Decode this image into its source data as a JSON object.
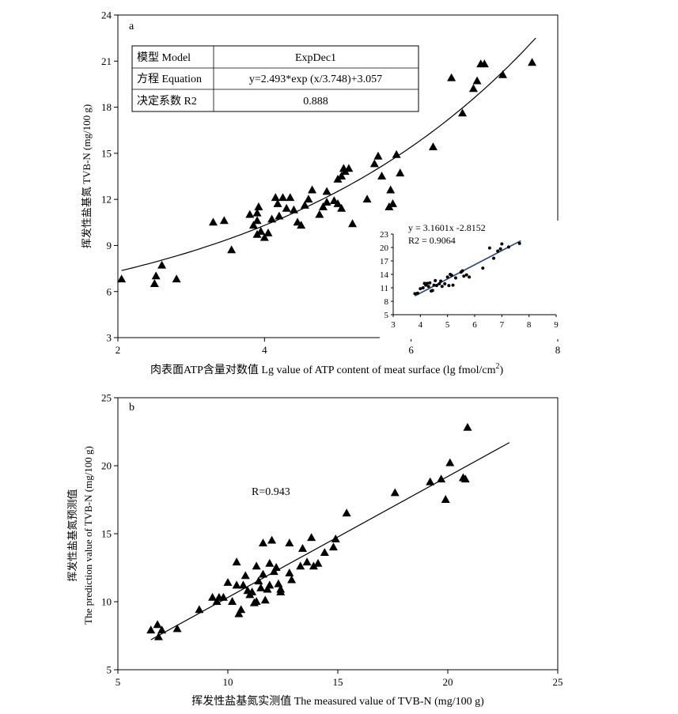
{
  "figure": {
    "panels": [
      {
        "label": "a",
        "xlabel": "肉表面ATP含量对数值 Lg value of ATP content of meat surface (lg fmol/cm",
        "xlabel_sup": "2",
        "xlabel_tail": ")",
        "ylabel": "挥发性盐基氮 TVB-N (mg/100 g)",
        "table": {
          "rows": [
            [
              "模型 Model",
              "ExpDec1"
            ],
            [
              "方程 Equation",
              "y=2.493*exp (x/3.748)+3.057"
            ],
            [
              "决定系数 R2",
              "0.888"
            ]
          ]
        },
        "inset": {
          "eq_line1": "y = 3.1601x -2.8152",
          "eq_line2": "R2 = 0.9064"
        }
      },
      {
        "label": "b",
        "xlabel": "挥发性盐基氮实测值 The measured value of TVB-N (mg/100 g)",
        "ylabel_cn": "挥发性盐基氮预测值",
        "ylabel_en": "The prediction value of TVB-N (mg/100 g)",
        "annotation": "R=0.943"
      }
    ]
  },
  "chart_data": [
    {
      "type": "scatter",
      "panel": "a",
      "x_range": [
        2,
        8
      ],
      "y_range": [
        3,
        24
      ],
      "x_ticks": [
        2,
        4,
        6,
        8
      ],
      "y_ticks": [
        3,
        6,
        9,
        12,
        15,
        18,
        21,
        24
      ],
      "marker": "triangle",
      "fit": {
        "model": "ExpDec1",
        "a": 2.493,
        "t": 3.748,
        "c": 3.057,
        "x_from": 2.05,
        "x_to": 7.7
      },
      "points": [
        [
          2.05,
          6.8
        ],
        [
          2.5,
          6.5
        ],
        [
          2.52,
          7.0
        ],
        [
          2.6,
          7.7
        ],
        [
          2.8,
          6.8
        ],
        [
          3.3,
          10.5
        ],
        [
          3.45,
          10.6
        ],
        [
          3.55,
          8.7
        ],
        [
          3.8,
          11.0
        ],
        [
          3.85,
          10.3
        ],
        [
          3.9,
          10.6
        ],
        [
          3.9,
          11.1
        ],
        [
          3.92,
          11.5
        ],
        [
          3.9,
          9.7
        ],
        [
          3.95,
          9.9
        ],
        [
          4.0,
          9.5
        ],
        [
          4.05,
          9.8
        ],
        [
          4.1,
          10.7
        ],
        [
          4.15,
          12.1
        ],
        [
          4.18,
          11.7
        ],
        [
          4.2,
          10.9
        ],
        [
          4.25,
          12.1
        ],
        [
          4.3,
          11.4
        ],
        [
          4.35,
          12.1
        ],
        [
          4.4,
          11.3
        ],
        [
          4.45,
          10.5
        ],
        [
          4.5,
          10.3
        ],
        [
          4.55,
          11.6
        ],
        [
          4.6,
          12.0
        ],
        [
          4.65,
          12.6
        ],
        [
          4.75,
          11.0
        ],
        [
          4.8,
          11.5
        ],
        [
          4.85,
          12.5
        ],
        [
          4.85,
          11.8
        ],
        [
          4.95,
          11.9
        ],
        [
          5.0,
          11.7
        ],
        [
          5.0,
          13.3
        ],
        [
          5.05,
          13.5
        ],
        [
          5.05,
          11.4
        ],
        [
          5.08,
          14.0
        ],
        [
          5.1,
          13.8
        ],
        [
          5.15,
          14.0
        ],
        [
          5.2,
          10.4
        ],
        [
          5.4,
          12.0
        ],
        [
          5.5,
          14.3
        ],
        [
          5.55,
          14.8
        ],
        [
          5.6,
          13.5
        ],
        [
          5.7,
          11.5
        ],
        [
          5.72,
          12.6
        ],
        [
          5.75,
          11.7
        ],
        [
          5.8,
          14.9
        ],
        [
          5.85,
          13.7
        ],
        [
          6.3,
          15.4
        ],
        [
          6.55,
          19.9
        ],
        [
          6.7,
          17.6
        ],
        [
          6.85,
          19.2
        ],
        [
          6.9,
          19.7
        ],
        [
          6.95,
          20.8
        ],
        [
          7.0,
          20.8
        ],
        [
          7.25,
          20.1
        ],
        [
          7.65,
          20.9
        ]
      ]
    },
    {
      "type": "scatter",
      "panel": "a-inset",
      "x_range": [
        3,
        9
      ],
      "y_range": [
        5,
        23
      ],
      "x_ticks": [
        3,
        4,
        5,
        6,
        7,
        8,
        9
      ],
      "y_ticks": [
        5,
        8,
        11,
        14,
        17,
        20,
        23
      ],
      "marker": "dot",
      "fit": {
        "slope": 3.1601,
        "intercept": -2.8152,
        "x_from": 3.8,
        "x_to": 7.7
      },
      "points": [
        [
          3.8,
          9.7
        ],
        [
          3.9,
          9.8
        ],
        [
          4.0,
          10.8
        ],
        [
          4.1,
          11.0
        ],
        [
          4.15,
          12.0
        ],
        [
          4.2,
          11.6
        ],
        [
          4.25,
          12.0
        ],
        [
          4.3,
          11.3
        ],
        [
          4.35,
          12.1
        ],
        [
          4.4,
          10.3
        ],
        [
          4.45,
          10.4
        ],
        [
          4.5,
          11.6
        ],
        [
          4.55,
          12.6
        ],
        [
          4.6,
          11.5
        ],
        [
          4.7,
          11.9
        ],
        [
          4.75,
          12.5
        ],
        [
          4.8,
          11.3
        ],
        [
          4.9,
          11.9
        ],
        [
          5.0,
          13.4
        ],
        [
          5.05,
          11.5
        ],
        [
          5.1,
          14.0
        ],
        [
          5.15,
          13.8
        ],
        [
          5.2,
          11.6
        ],
        [
          5.3,
          13.2
        ],
        [
          5.5,
          14.5
        ],
        [
          5.55,
          14.8
        ],
        [
          5.6,
          13.6
        ],
        [
          5.7,
          13.9
        ],
        [
          5.8,
          13.4
        ],
        [
          6.3,
          15.4
        ],
        [
          6.55,
          19.9
        ],
        [
          6.7,
          17.6
        ],
        [
          6.85,
          19.2
        ],
        [
          6.95,
          19.7
        ],
        [
          7.0,
          20.8
        ],
        [
          7.25,
          20.1
        ],
        [
          7.65,
          20.9
        ]
      ]
    },
    {
      "type": "scatter",
      "panel": "b",
      "x_range": [
        5,
        25
      ],
      "y_range": [
        5,
        25
      ],
      "x_ticks": [
        5,
        10,
        15,
        20,
        25
      ],
      "y_ticks": [
        5,
        10,
        15,
        20,
        25
      ],
      "marker": "triangle",
      "fit": {
        "x_from": 6.5,
        "y_from": 7.2,
        "x_to": 22.8,
        "y_to": 21.7
      },
      "points": [
        [
          6.5,
          7.9
        ],
        [
          6.8,
          8.3
        ],
        [
          6.85,
          7.4
        ],
        [
          7.0,
          7.9
        ],
        [
          7.7,
          8.0
        ],
        [
          8.7,
          9.4
        ],
        [
          9.3,
          10.3
        ],
        [
          9.5,
          10.0
        ],
        [
          9.6,
          10.3
        ],
        [
          9.8,
          10.3
        ],
        [
          10.0,
          11.4
        ],
        [
          10.2,
          10.0
        ],
        [
          10.4,
          12.9
        ],
        [
          10.4,
          11.2
        ],
        [
          10.5,
          9.1
        ],
        [
          10.6,
          9.4
        ],
        [
          10.7,
          11.2
        ],
        [
          10.8,
          11.9
        ],
        [
          10.9,
          10.8
        ],
        [
          11.0,
          10.5
        ],
        [
          11.1,
          10.7
        ],
        [
          11.2,
          9.9
        ],
        [
          11.3,
          12.6
        ],
        [
          11.3,
          10.0
        ],
        [
          11.4,
          11.5
        ],
        [
          11.5,
          11.0
        ],
        [
          11.6,
          14.3
        ],
        [
          11.6,
          12.0
        ],
        [
          11.7,
          10.1
        ],
        [
          11.8,
          10.9
        ],
        [
          11.9,
          12.8
        ],
        [
          11.9,
          11.2
        ],
        [
          12.0,
          14.5
        ],
        [
          12.1,
          12.2
        ],
        [
          12.2,
          12.5
        ],
        [
          12.3,
          11.3
        ],
        [
          12.4,
          10.7
        ],
        [
          12.4,
          10.9
        ],
        [
          12.8,
          14.3
        ],
        [
          12.8,
          12.1
        ],
        [
          12.9,
          11.6
        ],
        [
          13.3,
          12.6
        ],
        [
          13.4,
          13.9
        ],
        [
          13.6,
          12.9
        ],
        [
          13.8,
          14.7
        ],
        [
          13.9,
          12.6
        ],
        [
          14.1,
          12.8
        ],
        [
          14.4,
          13.6
        ],
        [
          14.8,
          14.0
        ],
        [
          14.9,
          14.6
        ],
        [
          15.4,
          16.5
        ],
        [
          17.6,
          18.0
        ],
        [
          19.2,
          18.8
        ],
        [
          19.7,
          19.0
        ],
        [
          19.9,
          17.5
        ],
        [
          20.1,
          20.2
        ],
        [
          20.7,
          19.1
        ],
        [
          20.8,
          19.0
        ],
        [
          20.9,
          22.8
        ]
      ]
    }
  ]
}
